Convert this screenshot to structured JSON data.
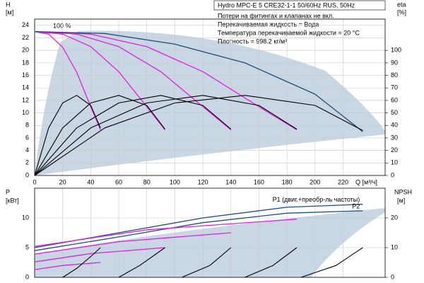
{
  "chart_data": [
    {
      "type": "line",
      "title": "Hydro MPC-E 5 CRE32-1-1 50/60Hz RUS, 50Hz",
      "annotations": [
        "Потери на фитингах и клапанах не вкл.",
        "Перекачиваемая жидкость = Вода",
        "Температура перекачиваемой жидкости = 20 °C",
        "Плотность = 998.2 кг/м³",
        "100 %"
      ],
      "y_label": [
        "H",
        "[м]"
      ],
      "y2_label": [
        "eta",
        "[%]"
      ],
      "x_label": "Q [м³/ч]",
      "xlim": [
        0,
        250
      ],
      "xticks": [
        0,
        20,
        40,
        60,
        80,
        100,
        120,
        140,
        160,
        180,
        200,
        220
      ],
      "ylim": [
        0,
        25
      ],
      "yticks": [
        0,
        2,
        4,
        6,
        8,
        10,
        12,
        14,
        16,
        18,
        20,
        22,
        24
      ],
      "y2lim": [
        0,
        125
      ],
      "y2ticks": [
        0,
        10,
        20,
        30,
        40,
        50,
        60,
        70,
        80,
        90,
        100
      ],
      "grid": true,
      "series": [
        {
          "color": "#e020e0",
          "x": [
            0,
            10,
            20,
            30,
            40,
            47
          ],
          "values": [
            23,
            22.6,
            20.5,
            16.5,
            11,
            7.3
          ]
        },
        {
          "color": "#e020e0",
          "x": [
            0,
            20,
            40,
            60,
            80,
            93
          ],
          "values": [
            23,
            22.6,
            20.6,
            16.6,
            11,
            7.3
          ]
        },
        {
          "color": "#e020e0",
          "x": [
            0,
            30,
            60,
            90,
            120,
            140
          ],
          "values": [
            23,
            22.6,
            20.6,
            16.6,
            11,
            7.3
          ]
        },
        {
          "color": "#e020e0",
          "x": [
            0,
            40,
            80,
            120,
            160,
            187
          ],
          "values": [
            23,
            22.6,
            20.6,
            16.6,
            11,
            7.3
          ]
        },
        {
          "color": "#1f4e79",
          "x": [
            0,
            50,
            100,
            150,
            200,
            234
          ],
          "values": [
            23,
            22.7,
            21,
            18,
            13,
            7
          ]
        },
        {
          "color": "#000000",
          "axis": "y2",
          "x": [
            0,
            10,
            20,
            30,
            40,
            47
          ],
          "values": [
            0,
            38,
            58,
            64,
            56,
            38
          ]
        },
        {
          "color": "#000000",
          "axis": "y2",
          "x": [
            0,
            20,
            40,
            60,
            80,
            93
          ],
          "values": [
            0,
            38,
            58,
            64,
            56,
            37
          ]
        },
        {
          "color": "#000000",
          "axis": "y2",
          "x": [
            0,
            30,
            60,
            90,
            120,
            140
          ],
          "values": [
            0,
            38,
            58,
            64,
            56,
            37
          ]
        },
        {
          "color": "#000000",
          "axis": "y2",
          "x": [
            0,
            40,
            80,
            120,
            160,
            187
          ],
          "values": [
            0,
            38,
            58,
            64,
            56,
            37
          ]
        },
        {
          "color": "#000000",
          "axis": "y2",
          "x": [
            0,
            50,
            100,
            150,
            200,
            234
          ],
          "values": [
            0,
            38,
            58,
            64,
            56,
            36
          ]
        }
      ]
    },
    {
      "type": "line",
      "y_label": [
        "P",
        "[кВт]"
      ],
      "y2_label": [
        "NPSH",
        "[м]"
      ],
      "xlim": [
        0,
        250
      ],
      "xticks": [
        0,
        20,
        40,
        60,
        80,
        100,
        120,
        140,
        160,
        180,
        200,
        220
      ],
      "ylim": [
        0,
        15
      ],
      "yticks": [
        0,
        5,
        10
      ],
      "y2lim": [
        0,
        30
      ],
      "y2ticks": [
        0,
        10,
        20
      ],
      "grid": true,
      "series": [
        {
          "name": "P1 (двиг.+преобр-ль частоты)",
          "color": "#1f4e79",
          "x": [
            0,
            60,
            120,
            180,
            234
          ],
          "values": [
            5,
            7.5,
            10,
            11.8,
            12.3
          ]
        },
        {
          "name": "P2",
          "color": "#1f4e79",
          "x": [
            0,
            60,
            120,
            180,
            234
          ],
          "values": [
            4.5,
            6.8,
            9.2,
            10.8,
            11.2
          ]
        },
        {
          "color": "#e020e0",
          "x": [
            0,
            20,
            47
          ],
          "values": [
            1.3,
            2,
            2.5
          ]
        },
        {
          "color": "#e020e0",
          "x": [
            0,
            40,
            93
          ],
          "values": [
            2.6,
            4,
            5
          ]
        },
        {
          "color": "#e020e0",
          "x": [
            0,
            60,
            140
          ],
          "values": [
            3.9,
            6,
            7.5
          ]
        },
        {
          "color": "#e020e0",
          "x": [
            0,
            80,
            187
          ],
          "values": [
            5.2,
            8,
            9.8
          ]
        },
        {
          "color": "#000000",
          "axis": "y2",
          "x": [
            20,
            30,
            40,
            47
          ],
          "values": [
            0,
            3,
            7,
            10
          ]
        },
        {
          "color": "#000000",
          "axis": "y2",
          "x": [
            60,
            75,
            93
          ],
          "values": [
            0,
            4,
            10
          ]
        },
        {
          "color": "#000000",
          "axis": "y2",
          "x": [
            105,
            125,
            140
          ],
          "values": [
            0,
            4,
            10
          ]
        },
        {
          "color": "#000000",
          "axis": "y2",
          "x": [
            150,
            170,
            187
          ],
          "values": [
            0,
            4,
            10
          ]
        },
        {
          "color": "#000000",
          "axis": "y2",
          "x": [
            190,
            215,
            234
          ],
          "values": [
            0,
            4,
            10
          ]
        }
      ]
    }
  ]
}
